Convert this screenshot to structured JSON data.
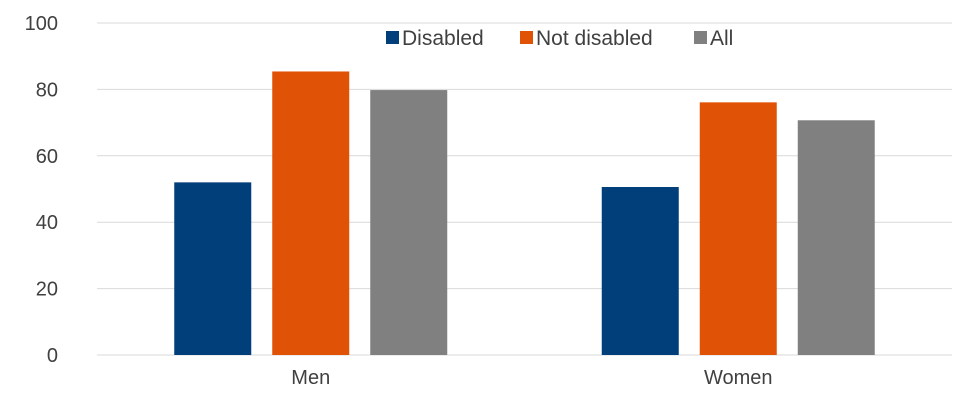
{
  "chart_data": {
    "type": "bar",
    "categories": [
      "Men",
      "Women"
    ],
    "series": [
      {
        "name": "Disabled",
        "color": "#003F7A",
        "values": [
          52,
          50.6
        ]
      },
      {
        "name": "Not disabled",
        "color": "#E05206",
        "values": [
          85.4,
          76.1
        ]
      },
      {
        "name": "All",
        "color": "#808080",
        "values": [
          79.8,
          70.7
        ]
      }
    ],
    "ylim": [
      0,
      100
    ],
    "yticks": [
      0,
      20,
      40,
      60,
      80,
      100
    ],
    "grid": true,
    "legend_position": "top-center",
    "gridline_color": "#D9D9D9"
  }
}
